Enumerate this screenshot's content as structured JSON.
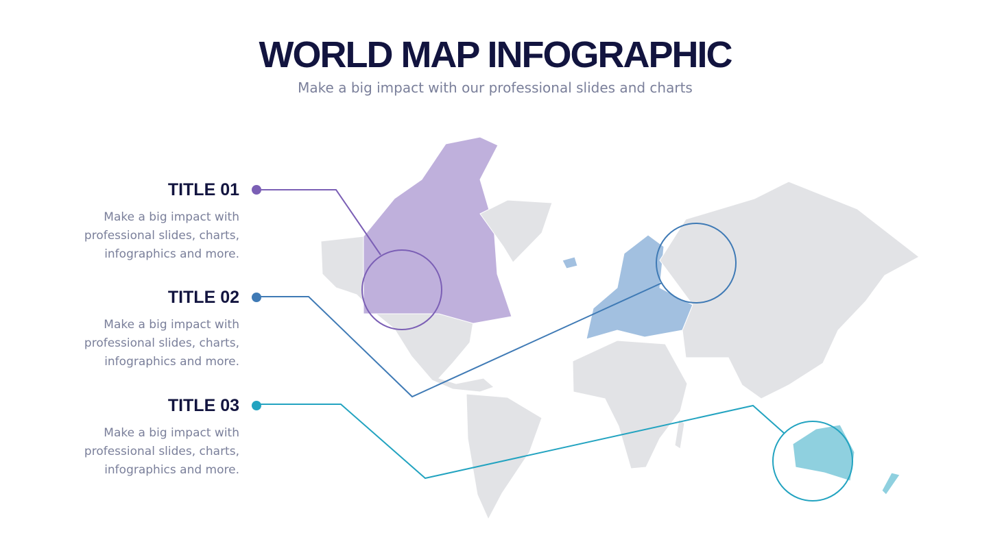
{
  "header": {
    "title": "WORLD MAP INFOGRAPHIC",
    "subtitle": "Make a big impact with our professional slides and charts"
  },
  "items": [
    {
      "title": "TITLE 01",
      "color": "#7b5fb5",
      "lines": [
        "Make a big impact with",
        "professional slides, charts,",
        "infographics and more."
      ]
    },
    {
      "title": "TITLE 02",
      "color": "#3f7ab5",
      "lines": [
        "Make a big impact with",
        "professional slides, charts,",
        "infographics and more."
      ]
    },
    {
      "title": "TITLE 03",
      "color": "#22a3c0",
      "lines": [
        "Make a big impact with",
        "professional slides, charts,",
        "infographics and more."
      ]
    }
  ]
}
